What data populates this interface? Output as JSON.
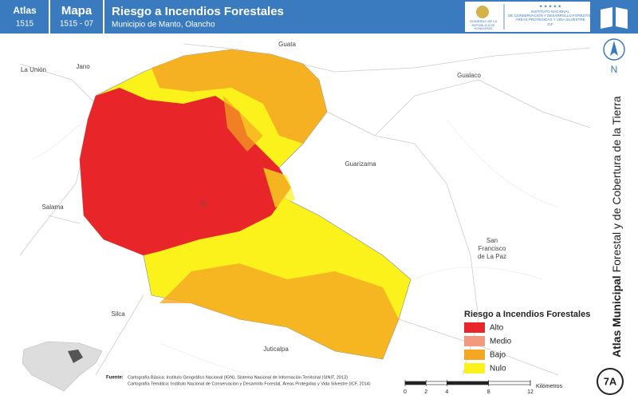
{
  "header": {
    "atlas_label": "Atlas",
    "atlas_code": "1515",
    "mapa_label": "Mapa",
    "mapa_code": "1515 - 07",
    "title": "Riesgo a Incendios Forestales",
    "subtitle": "Municipio de Manto, Olancho",
    "logo_left": "GOBIERNO DE LA REPÚBLICA DE HONDURAS",
    "logo_right": [
      "INSTITUTO NACIONAL",
      "DE CONSERVACIÓN Y DESARROLLO FORESTAL,",
      "ÁREAS PROTEGIDAS Y VIDA SILVESTRE",
      "ICF"
    ]
  },
  "places": [
    "La Unión",
    "Jano",
    "Guata",
    "Gualaco",
    "Guarizama",
    "Salama",
    "San",
    "Francisco",
    "de La Paz",
    "Silca",
    "Juticalpa"
  ],
  "legend": {
    "title": "Riesgo a Incendios Forestales",
    "items": [
      {
        "label": "Alto",
        "color": "#e8262a"
      },
      {
        "label": "Medio",
        "color": "#f39a7e"
      },
      {
        "label": "Bajo",
        "color": "#f5a623"
      },
      {
        "label": "Nulo",
        "color": "#fbf21c"
      }
    ]
  },
  "side": {
    "bold": "Atlas Municipal",
    "rest": "Forestal y de Cobertura de la Tierra",
    "north": "N",
    "badge": "7A"
  },
  "scale": {
    "ticks": [
      0,
      2,
      4,
      8,
      12
    ],
    "unit": "Kilómetros"
  },
  "sources": {
    "label": "Fuente:",
    "lines": [
      "Cartografía Básica: Instituto Geográfico Nacional (IGN), Sistema Nacional de Información Territorial (SINIT, 2013)",
      "Cartografía Temática: Instituto Nacional de Conservación y Desarrollo Forestal, Áreas Protegidas y Vida Silvestre (ICF, 2014)"
    ]
  }
}
